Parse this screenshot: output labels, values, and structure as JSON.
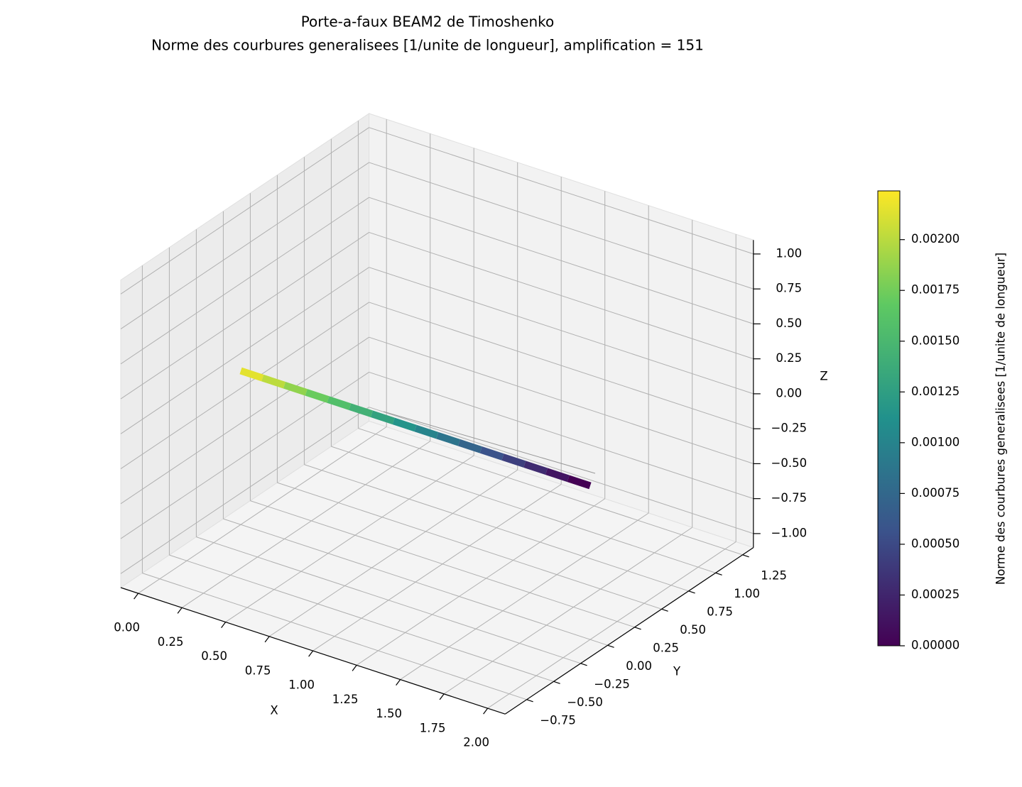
{
  "chart_data": {
    "type": "beam3d",
    "title": "Porte-a-faux BEAM2 de Timoshenko",
    "subtitle": "Norme des courbures generalisees [1/unite de longueur], amplification = 151",
    "x_label": "X",
    "y_label": "Y",
    "z_label": "Z",
    "xlim": [
      -0.1,
      2.1
    ],
    "ylim": [
      -0.95,
      1.35
    ],
    "zlim": [
      -1.1,
      1.1
    ],
    "xticks": [
      {
        "value": 0,
        "label": "0.00"
      },
      {
        "value": 0.25,
        "label": "0.25"
      },
      {
        "value": 0.5,
        "label": "0.50"
      },
      {
        "value": 0.75,
        "label": "0.75"
      },
      {
        "value": 1,
        "label": "1.00"
      },
      {
        "value": 1.25,
        "label": "1.25"
      },
      {
        "value": 1.5,
        "label": "1.50"
      },
      {
        "value": 1.75,
        "label": "1.75"
      },
      {
        "value": 2,
        "label": "2.00"
      }
    ],
    "yticks": [
      {
        "value": -0.75,
        "label": "−0.75"
      },
      {
        "value": -0.5,
        "label": "−0.50"
      },
      {
        "value": -0.25,
        "label": "−0.25"
      },
      {
        "value": 0,
        "label": "0.00"
      },
      {
        "value": 0.25,
        "label": "0.25"
      },
      {
        "value": 0.5,
        "label": "0.50"
      },
      {
        "value": 0.75,
        "label": "0.75"
      },
      {
        "value": 1,
        "label": "1.00"
      },
      {
        "value": 1.25,
        "label": "1.25"
      }
    ],
    "zticks": [
      {
        "value": -1,
        "label": "−1.00"
      },
      {
        "value": -0.75,
        "label": "−0.75"
      },
      {
        "value": -0.5,
        "label": "−0.50"
      },
      {
        "value": -0.25,
        "label": "−0.25"
      },
      {
        "value": 0,
        "label": "0.00"
      },
      {
        "value": 0.25,
        "label": "0.25"
      },
      {
        "value": 0.5,
        "label": "0.50"
      },
      {
        "value": 0.75,
        "label": "0.75"
      },
      {
        "value": 1,
        "label": "1.00"
      }
    ],
    "grid": true,
    "colormap": "viridis",
    "x": [
      0.0625,
      0.1875,
      0.3125,
      0.4375,
      0.5625,
      0.6875,
      0.8125,
      0.9375,
      1.0625,
      1.1875,
      1.3125,
      1.4375,
      1.5625,
      1.6875,
      1.8125,
      1.9375
    ],
    "values": [
      0.00215,
      0.00201,
      0.00186,
      0.00172,
      0.00158,
      0.00143,
      0.00129,
      0.00115,
      0.001,
      0.00086,
      0.00072,
      0.00057,
      0.00043,
      0.00029,
      0.00014,
      0.0
    ],
    "colorbar": {
      "label": "Norme des courbures generalisees [1/unite de longueur]",
      "lim": [
        0,
        0.00224
      ],
      "ticks": [
        {
          "value": 0,
          "label": "0.00000"
        },
        {
          "value": 0.00025,
          "label": "0.00025"
        },
        {
          "value": 0.0005,
          "label": "0.00050"
        },
        {
          "value": 0.00075,
          "label": "0.00075"
        },
        {
          "value": 0.001,
          "label": "0.00100"
        },
        {
          "value": 0.00125,
          "label": "0.00125"
        },
        {
          "value": 0.0015,
          "label": "0.00150"
        },
        {
          "value": 0.00175,
          "label": "0.00175"
        },
        {
          "value": 0.002,
          "label": "0.00200"
        }
      ]
    }
  }
}
